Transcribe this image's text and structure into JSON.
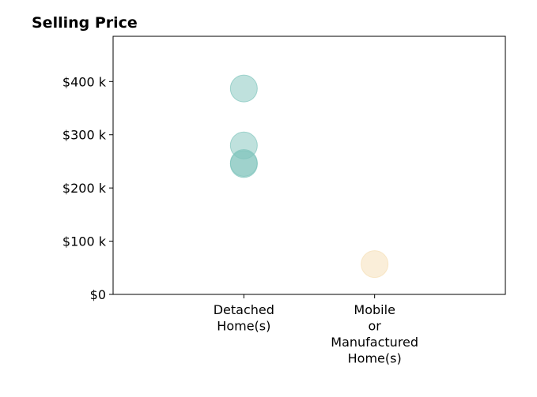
{
  "chart_data": {
    "type": "scatter",
    "title": "Selling Price",
    "xlabel": "",
    "ylabel": "",
    "categories": [
      [
        "Detached",
        "Home(s)"
      ],
      [
        "Mobile",
        "or",
        "Manufactured",
        "Home(s)"
      ]
    ],
    "x_range": [
      -1,
      2
    ],
    "ylim": [
      0,
      485000
    ],
    "y_ticks": [
      {
        "value": 0,
        "label": "$0"
      },
      {
        "value": 100000,
        "label": "$100 k"
      },
      {
        "value": 200000,
        "label": "$200 k"
      },
      {
        "value": 300000,
        "label": "$300 k"
      },
      {
        "value": 400000,
        "label": "$400 k"
      }
    ],
    "grid": false,
    "legend": "none",
    "points": [
      {
        "category": 0,
        "value": 387000,
        "color": "#7fc4bc"
      },
      {
        "category": 0,
        "value": 280000,
        "color": "#7fc4bc"
      },
      {
        "category": 0,
        "value": 247000,
        "color": "#7fc4bc"
      },
      {
        "category": 0,
        "value": 245000,
        "color": "#7fc4bc"
      },
      {
        "category": 1,
        "value": 57000,
        "color": "#f5deb3"
      }
    ],
    "marker_opacity": 0.5
  }
}
